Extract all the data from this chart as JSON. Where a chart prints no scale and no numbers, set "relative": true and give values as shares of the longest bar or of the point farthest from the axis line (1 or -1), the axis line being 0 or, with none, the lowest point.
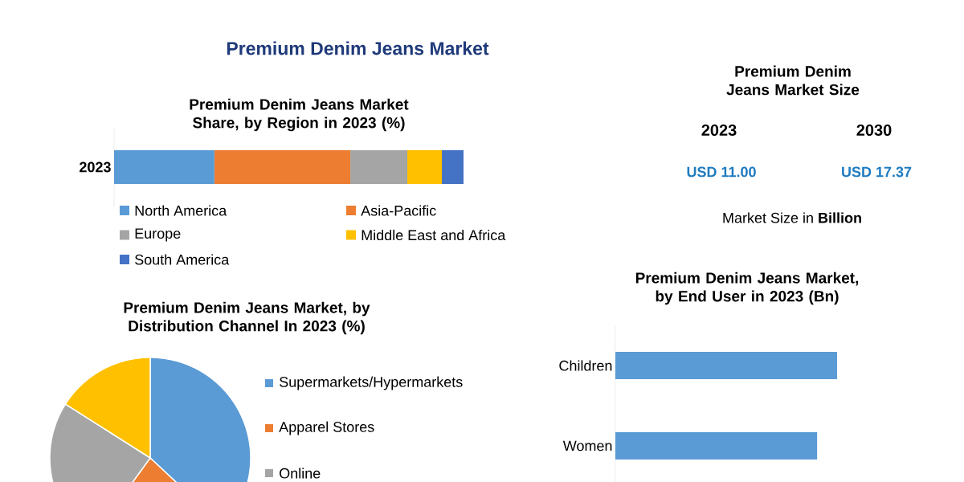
{
  "chart_data": [
    {
      "type": "bar",
      "title": "Premium Denim Jeans Market",
      "subtitle": "Premium Denim Jeans Market Share, by Region in 2023 (%)",
      "orientation": "horizontal",
      "stacked": true,
      "relative": true,
      "legend": "bottom",
      "categories": [
        "2023"
      ],
      "series": [
        {
          "name": "North America",
          "color": "#5b9bd5",
          "values": [
            0.287
          ]
        },
        {
          "name": "Asia-Pacific",
          "color": "#ed7d31",
          "values": [
            0.389
          ]
        },
        {
          "name": "Europe",
          "color": "#a5a5a5",
          "values": [
            0.163
          ]
        },
        {
          "name": "Middle East and Africa",
          "color": "#ffc000",
          "values": [
            0.099
          ]
        },
        {
          "name": "South America",
          "color": "#4472c4",
          "values": [
            0.062
          ]
        }
      ]
    },
    {
      "type": "other",
      "title": "Premium Denim Jeans Market Size",
      "categories": [
        "2023",
        "2030"
      ],
      "annotations": [
        "USD 11.00",
        "USD 17.37",
        "Market Size in **Billion**"
      ]
    },
    {
      "type": "pie",
      "title": "Premium Denim Jeans Market, by Distribution Channel In 2023 (%)",
      "legend": "right",
      "categories": [
        "Supermarkets/Hypermarkets",
        "Apparel Stores",
        "Online",
        null
      ],
      "values": [
        37,
        23,
        24,
        16
      ],
      "colors": [
        "#5b9bd5",
        "#ed7d31",
        "#a5a5a5",
        "#ffc000"
      ]
    },
    {
      "type": "bar",
      "title": "Premium Denim Jeans Market, by End User in 2023 (Bn)",
      "orientation": "horizontal",
      "relative": true,
      "categories": [
        "Children",
        "Women"
      ],
      "color": "#5b9bd5",
      "values": [
        1,
        0.91
      ]
    }
  ]
}
